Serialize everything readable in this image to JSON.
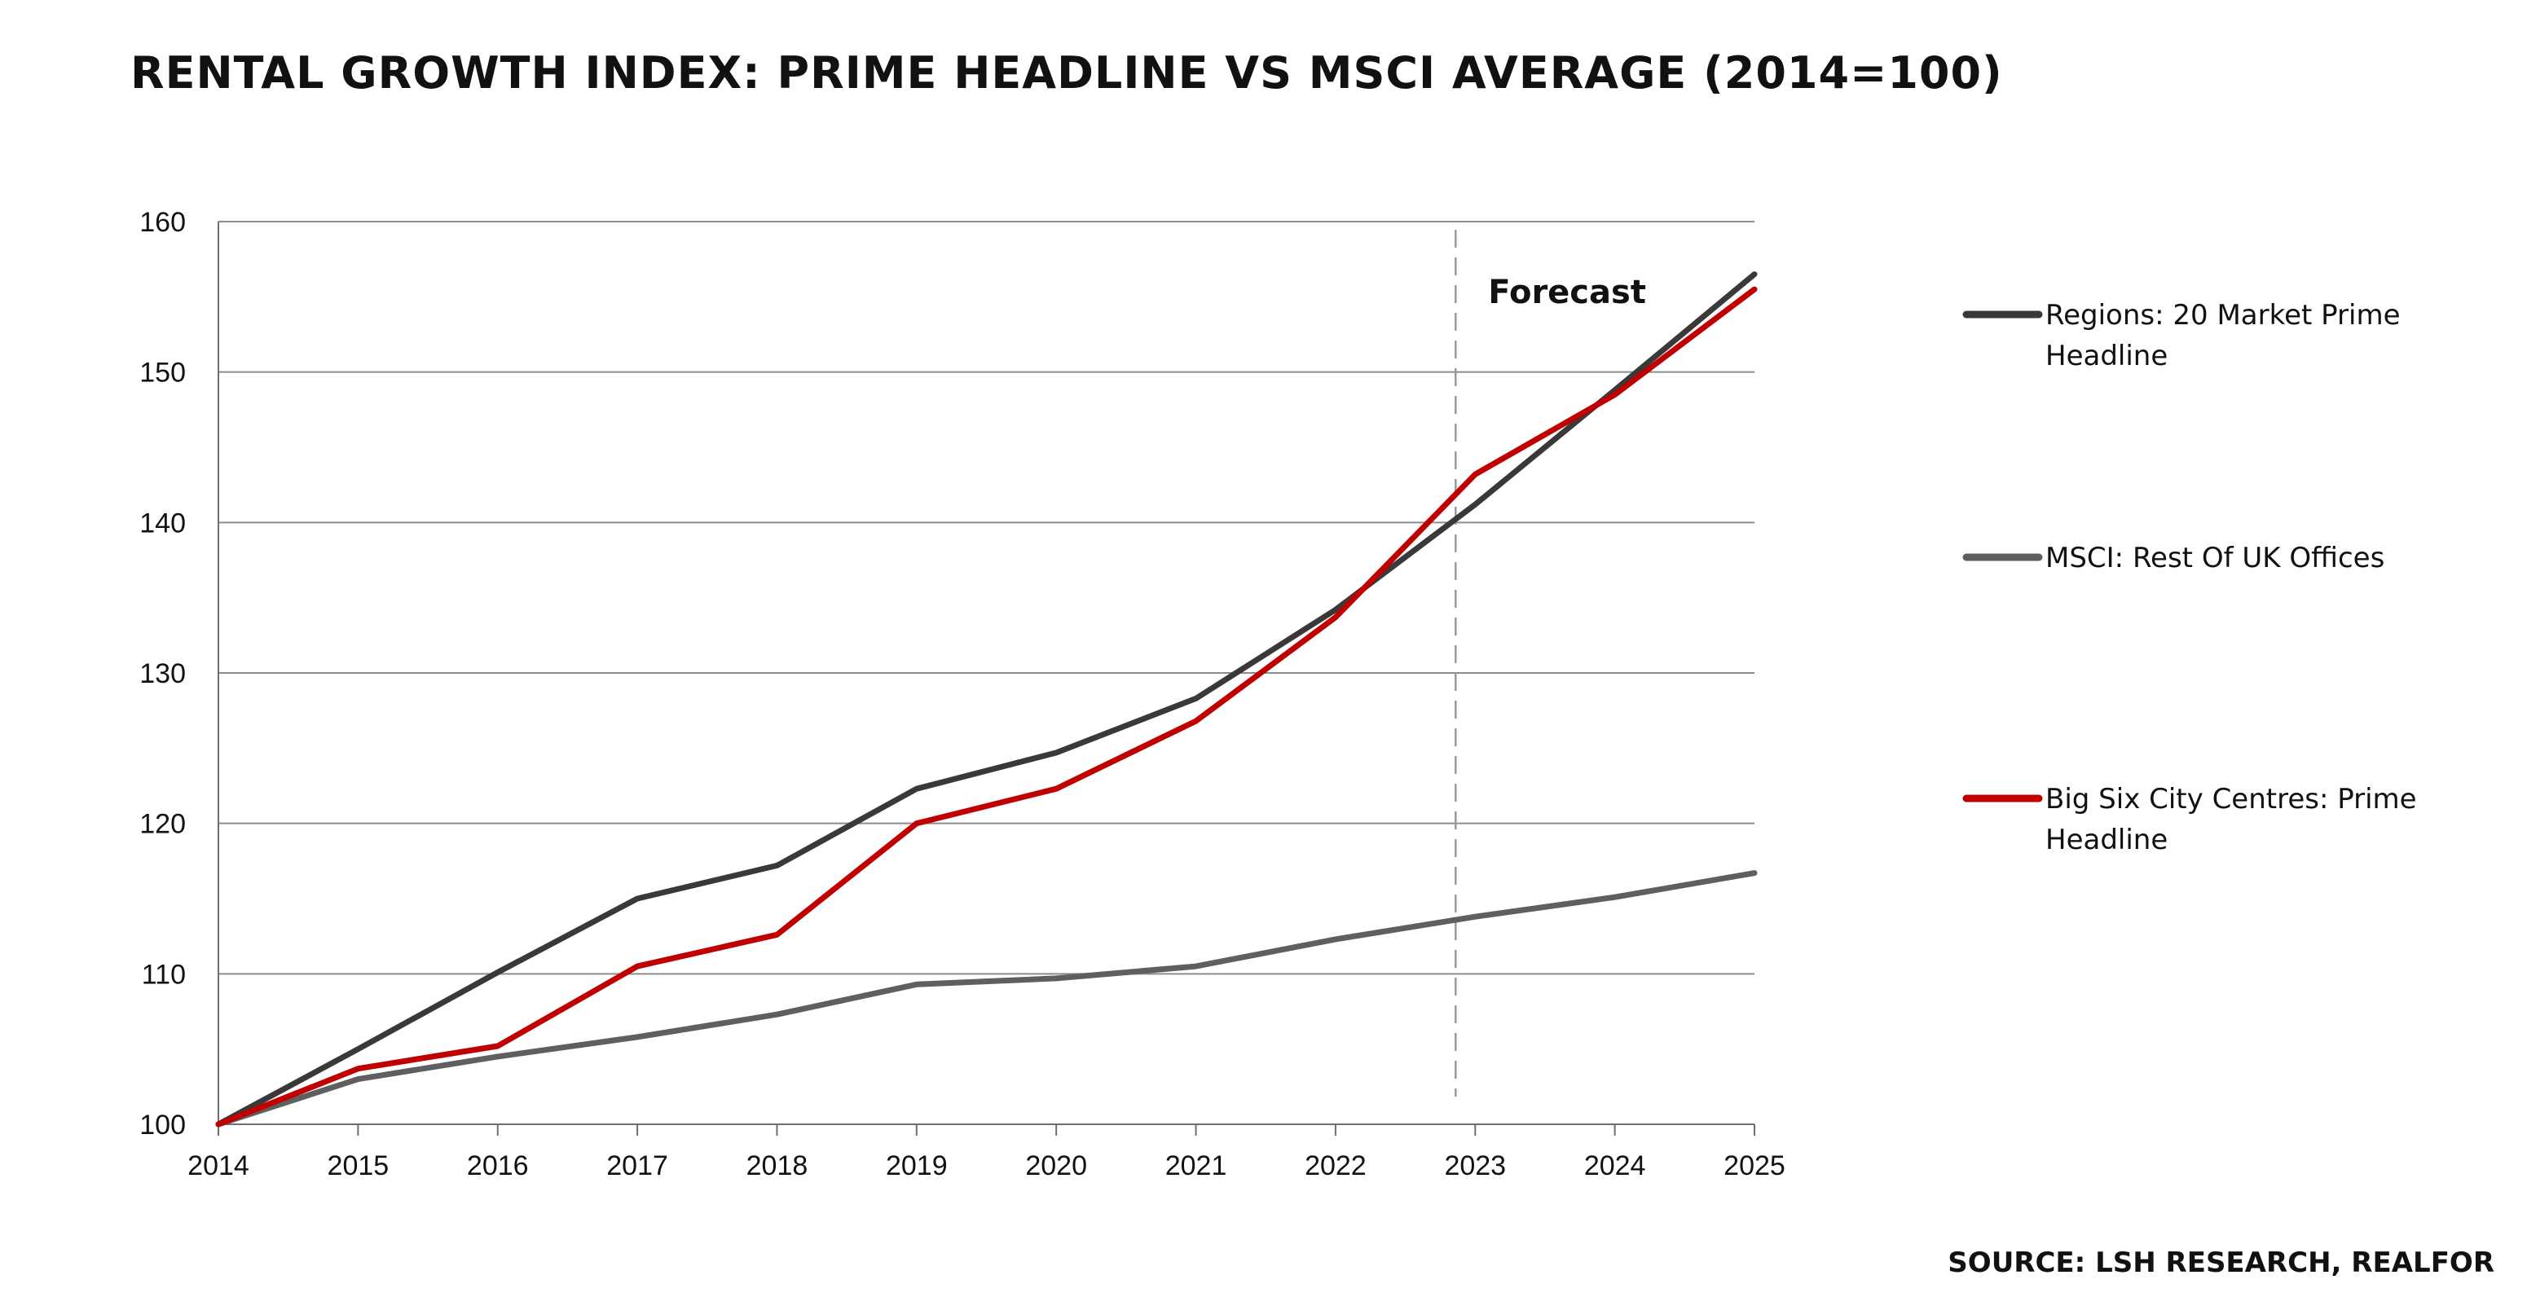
{
  "chart_data": {
    "type": "line",
    "title": "RENTAL GROWTH INDEX: PRIME HEADLINE VS MSCI AVERAGE (2014=100)",
    "xlabel": "",
    "ylabel": "",
    "x": [
      "2014",
      "2015",
      "2016",
      "2017",
      "2018",
      "2019",
      "2020",
      "2021",
      "2022",
      "2023",
      "2024",
      "2025"
    ],
    "y_ticks": [
      "100",
      "110",
      "120",
      "130",
      "140",
      "150",
      "160"
    ],
    "ylim": [
      100,
      160
    ],
    "grid": "horizontal",
    "legend_position": "right",
    "series": [
      {
        "name": "Regions: 20 Market Prime Headline",
        "name_lines": [
          "Regions: 20 Market Prime",
          "Headline"
        ],
        "color": "#3a3937",
        "values": [
          100,
          105,
          110.1,
          115,
          117.2,
          122.3,
          124.7,
          128.3,
          134.2,
          141.2,
          148.8,
          156.5
        ]
      },
      {
        "name": "MSCI: Rest Of UK Offices",
        "name_lines": [
          "MSCI: Rest Of UK Offices"
        ],
        "color": "#5f5f5f",
        "values": [
          100,
          103,
          104.5,
          105.8,
          107.3,
          109.3,
          109.7,
          110.5,
          112.3,
          113.8,
          115.1,
          116.7
        ]
      },
      {
        "name": "Big Six City Centres: Prime Headline",
        "name_lines": [
          "Big Six City Centres: Prime",
          "Headline"
        ],
        "color": "#c00000",
        "values": [
          100,
          103.7,
          105.2,
          110.5,
          112.6,
          120,
          122.3,
          126.8,
          133.7,
          143.2,
          148.5,
          155.5
        ]
      }
    ],
    "annotations": [
      {
        "text": "Forecast",
        "x": "2023"
      }
    ],
    "source": "SOURCE: LSH RESEARCH, REALFOR"
  }
}
